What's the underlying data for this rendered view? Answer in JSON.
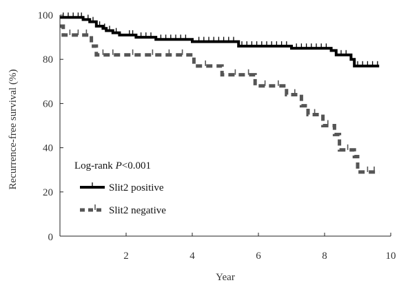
{
  "chart_data": {
    "type": "line",
    "xlabel": "Year",
    "ylabel": "Recurrence-free survival (%)",
    "xlim": [
      0,
      10
    ],
    "ylim": [
      0,
      100
    ],
    "x_ticks": [
      2,
      4,
      6,
      8,
      10
    ],
    "y_ticks": [
      0,
      20,
      40,
      60,
      80,
      100
    ],
    "grid": false,
    "annotation": {
      "prefix": "Log-rank ",
      "p_symbol": "P",
      "suffix": "<0.001"
    },
    "legend": {
      "placement": "bottom-left"
    },
    "series": [
      {
        "name": "Slit2 positive",
        "color": "#000000",
        "line_style": "solid",
        "steps": [
          [
            0,
            99
          ],
          [
            0.7,
            98
          ],
          [
            0.9,
            97
          ],
          [
            1.1,
            95
          ],
          [
            1.3,
            94
          ],
          [
            1.4,
            93
          ],
          [
            1.6,
            92
          ],
          [
            1.8,
            91
          ],
          [
            2.3,
            90
          ],
          [
            2.9,
            89
          ],
          [
            4.0,
            88
          ],
          [
            5.4,
            86
          ],
          [
            7.0,
            85
          ],
          [
            8.2,
            84
          ],
          [
            8.35,
            82
          ],
          [
            8.8,
            80
          ],
          [
            8.9,
            77
          ],
          [
            9.65,
            77
          ]
        ],
        "censor_x": [
          0.1,
          0.25,
          0.4,
          0.55,
          0.65,
          0.85,
          1.0,
          1.2,
          1.35,
          1.5,
          1.7,
          2.1,
          2.2,
          2.45,
          2.6,
          2.75,
          3.05,
          3.2,
          3.35,
          3.5,
          3.65,
          3.8,
          4.2,
          4.35,
          4.5,
          4.65,
          4.8,
          4.95,
          5.1,
          5.25,
          5.5,
          5.65,
          5.8,
          5.95,
          6.1,
          6.25,
          6.4,
          6.55,
          6.7,
          6.85,
          7.15,
          7.3,
          7.45,
          7.6,
          7.75,
          7.9,
          8.05,
          8.5,
          8.65,
          9.0,
          9.15,
          9.3,
          9.45,
          9.6
        ]
      },
      {
        "name": "Slit2 negative",
        "color": "#555555",
        "line_style": "dashed",
        "steps": [
          [
            0,
            95
          ],
          [
            0.1,
            91
          ],
          [
            0.95,
            86
          ],
          [
            1.1,
            82
          ],
          [
            4.05,
            77
          ],
          [
            4.9,
            73
          ],
          [
            5.9,
            68
          ],
          [
            6.85,
            64
          ],
          [
            7.3,
            59
          ],
          [
            7.5,
            55
          ],
          [
            7.95,
            50
          ],
          [
            8.3,
            46
          ],
          [
            8.45,
            39
          ],
          [
            8.9,
            36
          ],
          [
            9.0,
            29
          ],
          [
            9.65,
            29
          ]
        ],
        "censor_x": [
          0.3,
          0.55,
          0.8,
          1.3,
          1.6,
          2.2,
          2.8,
          3.3,
          3.7,
          4.4,
          5.3,
          5.7,
          6.2,
          6.6,
          7.1,
          7.7,
          8.1,
          8.7,
          9.3,
          9.5
        ]
      }
    ]
  }
}
